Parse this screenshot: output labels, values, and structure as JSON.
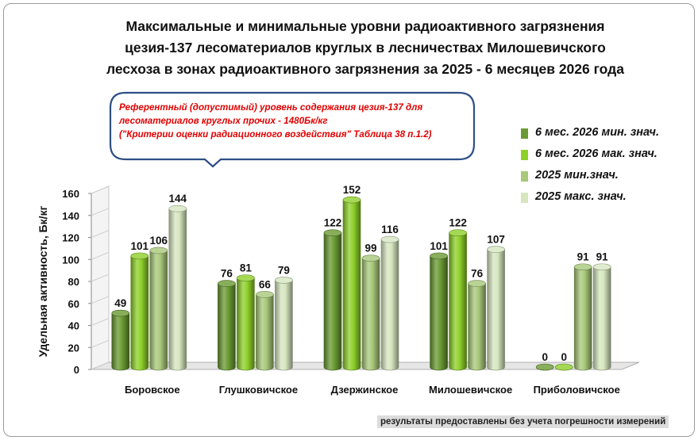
{
  "chart_data": {
    "type": "bar",
    "title": "Максимальные и минимальные уровни радиоактивного загрязнения цезия-137 лесоматериалов круглых в лесничествах Милошевичского лесхоза в зонах радиоактивного загрязнения  за 2025 - 6 месяцев 2026 года",
    "title_lines": [
      "Максимальные и минимальные уровни радиоактивного загрязнения",
      "цезия-137 лесоматериалов круглых в лесничествах Милошевичского",
      "лесхоза в зонах радиоактивного загрязнения  за 2025 - 6 месяцев 2026 года"
    ],
    "ylabel": "Удельная активность, Бк/кг",
    "xlabel": "",
    "ylim": [
      0,
      160
    ],
    "yticks": [
      "0",
      "20",
      "40",
      "60",
      "80",
      "100",
      "120",
      "140",
      "160"
    ],
    "categories": [
      "Боровское",
      "Глушковичское",
      "Дзержинское",
      "Милошевичское",
      "Приболовичское"
    ],
    "series": [
      {
        "name": "6 мес. 2026 мин. знач.",
        "values": [
          49,
          76,
          122,
          101,
          0
        ],
        "labels": [
          "49",
          "76",
          "122",
          "101",
          "0"
        ]
      },
      {
        "name": "6 мес. 2026 мак. знач.",
        "values": [
          101,
          81,
          152,
          122,
          0
        ],
        "labels": [
          "101",
          "81",
          "152",
          "122",
          "0"
        ]
      },
      {
        "name": "2025 мин.знач.",
        "values": [
          106,
          66,
          99,
          76,
          91
        ],
        "labels": [
          "106",
          "66",
          "99",
          "76",
          "91"
        ]
      },
      {
        "name": "2025 макс. знач.",
        "values": [
          144,
          79,
          116,
          107,
          91
        ],
        "labels": [
          "144",
          "79",
          "116",
          "107",
          "91"
        ]
      }
    ],
    "colors": [
      "#6a9a32",
      "#8ed02a",
      "#a8c87a",
      "#d6e6bf"
    ],
    "legend_position": "right",
    "grid": false
  },
  "callout": {
    "lines": [
      "Референтный (допустимый) уровень содержания цезия-137 для",
      "лесоматериалов круглых прочих - 1480Бк/кг",
      "(\"Критерии оценки радиационного воздействия\" Таблица 38 п.1.2)"
    ]
  },
  "footnote": "результаты предоставлены без учета погрешности измерений"
}
